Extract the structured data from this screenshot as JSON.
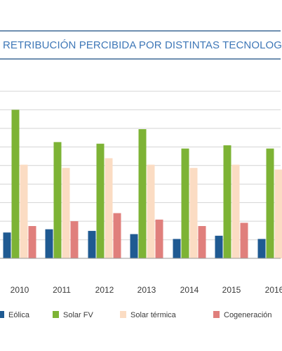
{
  "chart_data": {
    "type": "bar",
    "title": "RETRIBUCIÓN PERCIBIDA POR DISTINTAS TECNOLOG",
    "categories": [
      "2010",
      "2011",
      "2012",
      "2013",
      "2014",
      "2015",
      "2016"
    ],
    "series": [
      {
        "name": "Eólica",
        "color": "#1f5a92",
        "values": [
          1.6,
          1.8,
          1.7,
          1.5,
          1.2,
          1.4,
          1.2
        ]
      },
      {
        "name": "Solar FV",
        "color": "#7db335",
        "values": [
          9.2,
          7.2,
          7.1,
          8.0,
          6.8,
          7.0,
          6.8
        ]
      },
      {
        "name": "Solar térmica",
        "color": "#fbdcc3",
        "values": [
          5.8,
          5.6,
          6.2,
          5.8,
          5.6,
          5.8,
          5.5
        ]
      },
      {
        "name": "Cogeneración",
        "color": "#e07f7c",
        "values": [
          2.0,
          2.3,
          2.8,
          2.4,
          2.0,
          2.2,
          null
        ]
      }
    ],
    "grid": true,
    "legend_position": "bottom"
  }
}
